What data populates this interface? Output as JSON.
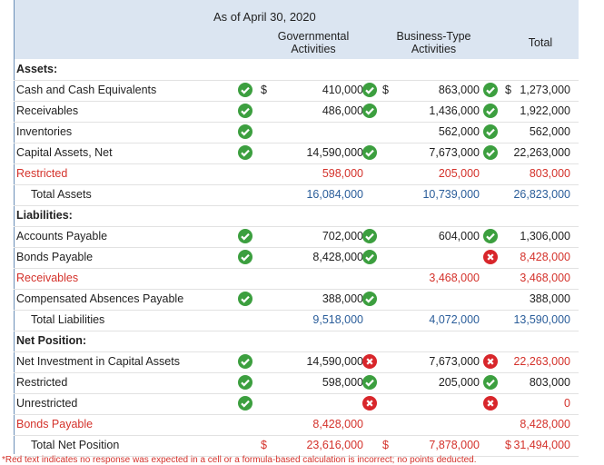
{
  "header": {
    "date": "As of April 30, 2020",
    "columns": [
      "Governmental Activities",
      "Business-Type Activities",
      "Total"
    ]
  },
  "table": {
    "rows": [
      {
        "label": "Assets:"
      },
      {
        "label": "Cash and Cash Equivalents",
        "gov_sign": "$",
        "gov": "410,000",
        "bus_sign": "$",
        "bus": "863,000",
        "total_sign": "$",
        "total": "1,273,000"
      },
      {
        "label": "Receivables",
        "gov": "486,000",
        "bus": "1,436,000",
        "total": "1,922,000"
      },
      {
        "label": "Inventories",
        "bus": "562,000",
        "total": "562,000"
      },
      {
        "label": "Capital Assets, Net",
        "gov": "14,590,000",
        "bus": "7,673,000",
        "total": "22,263,000"
      },
      {
        "label": "Restricted",
        "gov": "598,000",
        "bus": "205,000",
        "total": "803,000"
      },
      {
        "label": "Total Assets",
        "gov": "16,084,000",
        "bus": "10,739,000",
        "total": "26,823,000"
      },
      {
        "label": "Liabilities:"
      },
      {
        "label": "Accounts Payable",
        "gov": "702,000",
        "bus": "604,000",
        "total": "1,306,000"
      },
      {
        "label": "Bonds Payable",
        "gov": "8,428,000",
        "total": "8,428,000"
      },
      {
        "label": "Receivables",
        "bus": "3,468,000",
        "total": "3,468,000"
      },
      {
        "label": "Compensated Absences Payable",
        "gov": "388,000",
        "total": "388,000"
      },
      {
        "label": "Total Liabilities",
        "gov": "9,518,000",
        "bus": "4,072,000",
        "total": "13,590,000"
      },
      {
        "label": "Net Position:"
      },
      {
        "label": "Net Investment in Capital Assets",
        "gov": "14,590,000",
        "bus": "7,673,000",
        "total": "22,263,000"
      },
      {
        "label": "Restricted",
        "gov": "598,000",
        "bus": "205,000",
        "total": "803,000"
      },
      {
        "label": "Unrestricted",
        "total": "0"
      },
      {
        "label": "Bonds Payable",
        "gov": "8,428,000",
        "total": "8,428,000"
      },
      {
        "label": "Total Net Position",
        "gov_sign": "$",
        "gov": "23,616,000",
        "bus_sign": "$",
        "bus": "7,878,000",
        "total_sign": "$",
        "total": "31,494,000"
      }
    ]
  },
  "footnote": "*Red text indicates no response was expected in a cell or a formula-based calculation is incorrect; no points deducted."
}
